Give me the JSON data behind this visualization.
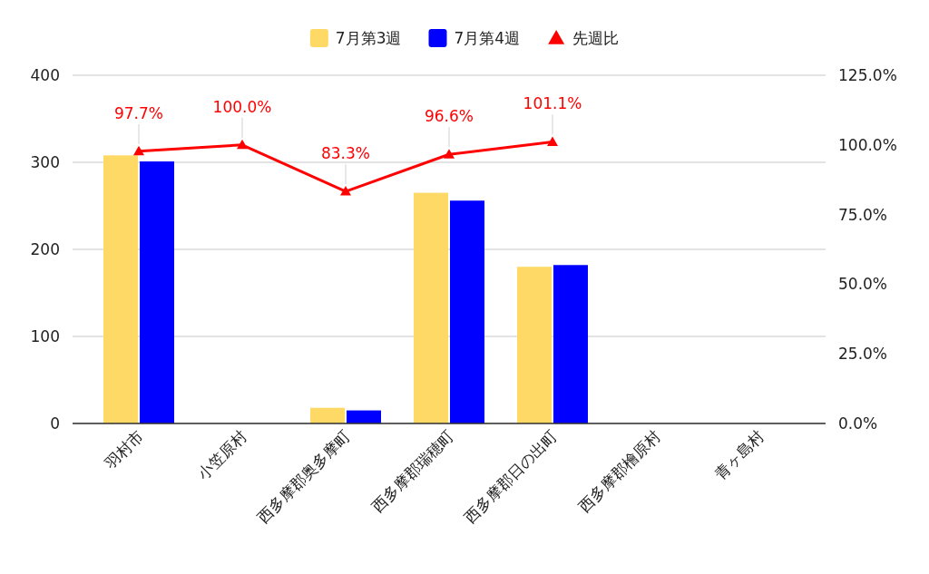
{
  "chart_data": {
    "type": "bar",
    "categories": [
      "羽村市",
      "小笠原村",
      "西多摩郡奥多摩町",
      "西多摩郡瑞穂町",
      "西多摩郡日の出町",
      "西多摩郡檜原村",
      "青ヶ島村"
    ],
    "series": [
      {
        "name": "7月第3週",
        "color": "#ffd966",
        "values": [
          308,
          null,
          18,
          265,
          180,
          0,
          0
        ]
      },
      {
        "name": "7月第4週",
        "color": "#0000ff",
        "values": [
          301,
          null,
          15,
          256,
          182,
          0,
          0
        ]
      },
      {
        "name": "先週比",
        "type": "line",
        "axis": "y2",
        "color": "#ff0000",
        "values": [
          97.7,
          100.0,
          83.3,
          96.6,
          101.1,
          null,
          null
        ],
        "value_labels": [
          "97.7%",
          "100.0%",
          "83.3%",
          "96.6%",
          "101.1%",
          null,
          null
        ]
      }
    ],
    "ylim": [
      0,
      400
    ],
    "yticks": [
      0,
      100,
      200,
      300,
      400
    ],
    "y2lim": [
      0,
      125
    ],
    "y2ticks": [
      {
        "value": 0,
        "label": "0.0%"
      },
      {
        "value": 25,
        "label": "25.0%"
      },
      {
        "value": 50,
        "label": "50.0%"
      },
      {
        "value": 75,
        "label": "75.0%"
      },
      {
        "value": 100,
        "label": "100.0%"
      },
      {
        "value": 125,
        "label": "125.0%"
      }
    ],
    "grid": "y",
    "legend": "top",
    "marker": "triangle"
  }
}
